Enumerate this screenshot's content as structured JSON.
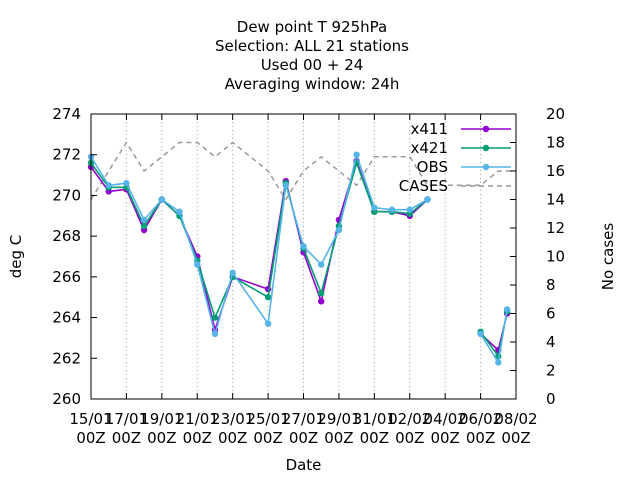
{
  "chart_data": {
    "type": "line",
    "title_lines": [
      "Dew point T 925hPa",
      "Selection: ALL      21 stations",
      "Used  00 + 24",
      "Averaging window: 24h"
    ],
    "xlabel": "Date",
    "ylabel": "deg C",
    "y2label": "No cases",
    "ylim": [
      260,
      274
    ],
    "y2lim": [
      0,
      20
    ],
    "yticks": [
      260,
      262,
      264,
      266,
      268,
      270,
      272,
      274
    ],
    "y2ticks": [
      0,
      2,
      4,
      6,
      8,
      10,
      12,
      14,
      16,
      18,
      20
    ],
    "xlim": [
      0,
      24
    ],
    "xticks": [
      {
        "x": 0,
        "l1": "15/01",
        "l2": "00Z"
      },
      {
        "x": 2,
        "l1": "17/01",
        "l2": "00Z"
      },
      {
        "x": 4,
        "l1": "19/01",
        "l2": "00Z"
      },
      {
        "x": 6,
        "l1": "21/01",
        "l2": "00Z"
      },
      {
        "x": 8,
        "l1": "23/01",
        "l2": "00Z"
      },
      {
        "x": 10,
        "l1": "25/01",
        "l2": "00Z"
      },
      {
        "x": 12,
        "l1": "27/01",
        "l2": "00Z"
      },
      {
        "x": 14,
        "l1": "29/01",
        "l2": "00Z"
      },
      {
        "x": 16,
        "l1": "31/01",
        "l2": "00Z"
      },
      {
        "x": 18,
        "l1": "02/02",
        "l2": "00Z"
      },
      {
        "x": 20,
        "l1": "04/02",
        "l2": "00Z"
      },
      {
        "x": 22,
        "l1": "06/02",
        "l2": "00Z"
      },
      {
        "x": 24,
        "l1": "08/02",
        "l2": "00Z"
      }
    ],
    "legend_position": "top-right",
    "series": [
      {
        "name": "x411",
        "axis": "y",
        "color": "#9400d3",
        "style": "line-points",
        "x": [
          0,
          1,
          2,
          3,
          4,
          5,
          6,
          7,
          8,
          10,
          11,
          12,
          13,
          14,
          15,
          16,
          17,
          18,
          19,
          20,
          21,
          22,
          23,
          23.5
        ],
        "y": [
          271.4,
          270.2,
          270.3,
          268.3,
          269.8,
          269.0,
          267.0,
          263.4,
          266.0,
          265.4,
          270.7,
          267.2,
          264.8,
          268.8,
          271.7,
          269.2,
          269.2,
          269.0,
          269.8,
          null,
          null,
          263.2,
          262.4,
          264.2
        ]
      },
      {
        "name": "x421",
        "axis": "y",
        "color": "#009e73",
        "style": "line-points",
        "x": [
          0,
          1,
          2,
          3,
          4,
          5,
          6,
          7,
          8,
          10,
          11,
          12,
          13,
          14,
          15,
          16,
          17,
          18,
          19,
          20,
          21,
          22,
          23,
          23.5
        ],
        "y": [
          271.6,
          270.4,
          270.4,
          268.5,
          269.8,
          269.0,
          266.8,
          264.0,
          266.0,
          265.0,
          270.6,
          267.4,
          265.2,
          268.5,
          271.6,
          269.2,
          269.2,
          269.1,
          269.8,
          null,
          null,
          263.3,
          262.1,
          264.3
        ]
      },
      {
        "name": "OBS",
        "axis": "y",
        "color": "#56b4e9",
        "style": "line-points",
        "x": [
          0,
          1,
          2,
          3,
          4,
          5,
          6,
          7,
          8,
          10,
          11,
          12,
          13,
          14,
          15,
          16,
          17,
          18,
          19,
          20,
          21,
          22,
          23,
          23.5
        ],
        "y": [
          271.9,
          270.5,
          270.6,
          268.8,
          269.8,
          269.2,
          266.6,
          263.2,
          266.2,
          263.7,
          270.5,
          267.5,
          266.6,
          268.3,
          272.0,
          269.4,
          269.3,
          269.3,
          269.8,
          null,
          null,
          263.2,
          261.8,
          264.4
        ]
      },
      {
        "name": "CASES",
        "axis": "y2",
        "color": "#999999",
        "style": "dashed",
        "x": [
          0,
          1,
          2,
          3,
          4,
          5,
          6,
          7,
          8,
          9,
          10,
          11,
          12,
          13,
          14,
          15,
          16,
          17,
          18,
          19,
          20,
          21,
          22,
          23,
          23.5,
          24
        ],
        "y": [
          14,
          16,
          18,
          16,
          17,
          18,
          18,
          17,
          18,
          17,
          16,
          14,
          16,
          17,
          16,
          15,
          17,
          17,
          17,
          15,
          15,
          15,
          15,
          16,
          16,
          16
        ]
      }
    ]
  }
}
